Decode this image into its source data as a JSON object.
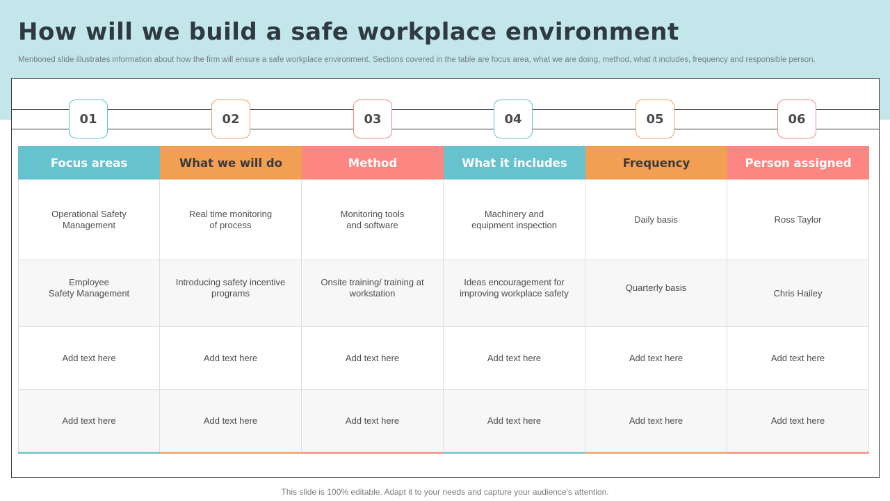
{
  "title": "How will we build a safe workplace environment",
  "subtitle": "Mentioned slide illustrates information about  how the firm  will ensure a safe workplace environment. Sections covered in the table are focus area, what we are doing, method, what it includes, frequency and responsible person.",
  "colors": {
    "teal": "#66c2cd",
    "orange": "#f39f53",
    "red": "#fc8682",
    "band": "#c2e6e9"
  },
  "steps": [
    "01",
    "02",
    "03",
    "04",
    "05",
    "06"
  ],
  "headers": [
    "Focus areas",
    "What we will do",
    "Method",
    "What it includes",
    "Frequency",
    "Person assigned"
  ],
  "rows": [
    [
      "Operational Safety\nManagement",
      "Real time monitoring\nof process",
      "Monitoring tools\nand software",
      "Machinery and\nequipment inspection",
      "Daily basis",
      "Ross Taylor"
    ],
    [
      "Employee\nSafety Management",
      "Introducing safety incentive\nprograms",
      "Onsite training/ training at\nworkstation",
      "Ideas encouragement  for\nimproving  workplace safety",
      "Quarterly basis",
      "Chris Hailey"
    ],
    [
      "Add text here",
      "Add text here",
      "Add text here",
      "Add text here",
      "Add text here",
      "Add text here"
    ],
    [
      "Add text here",
      "Add text here",
      "Add text here",
      "Add text here",
      "Add text here",
      "Add text here"
    ]
  ],
  "footer": "This slide is 100% editable. Adapt it to your needs and capture your audience's attention."
}
